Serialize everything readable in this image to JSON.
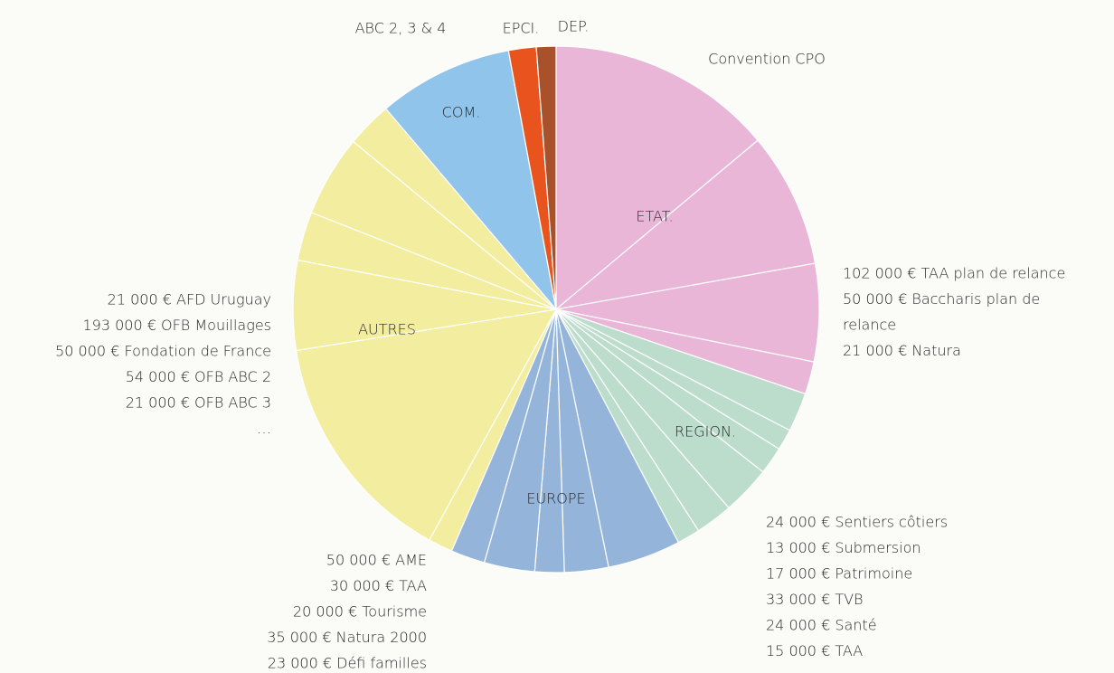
{
  "chart_data": {
    "type": "pie",
    "slices": [
      {
        "name": "ETAT.",
        "color": "#e9b6d8",
        "parts": [
          13.9,
          8.3,
          6.0,
          2.0
        ]
      },
      {
        "name": "REGION.",
        "color": "#bcdccc",
        "parts": [
          2.4,
          1.3,
          1.7,
          3.0,
          2.3,
          1.4
        ]
      },
      {
        "name": "EUROPE",
        "color": "#95b4da",
        "parts": [
          4.5,
          2.7,
          1.8,
          3.1,
          2.1
        ]
      },
      {
        "name": "AUTRES",
        "color": "#f3ed9f",
        "parts": [
          1.5,
          14.5,
          5.5,
          3.0,
          5.0,
          2.8
        ]
      },
      {
        "name": "COM.",
        "color": "#90c4ea",
        "parts": [
          8.3
        ]
      },
      {
        "name": "EPCI.",
        "color": "#e9531d",
        "parts": [
          1.7
        ]
      },
      {
        "name": "DEP.",
        "color": "#a9512b",
        "parts": [
          1.2
        ]
      }
    ],
    "annotations": [
      "ABC 2, 3 & 4",
      "Convention CPO"
    ],
    "notes": [
      [
        "102 000 € TAA plan de relance",
        "50 000 € Baccharis plan de",
        "relance",
        "21 000 € Natura"
      ],
      [
        "21 000 € AFD Uruguay",
        "193 000 € OFB Mouillages",
        "50 000 € Fondation de France",
        "54 000 € OFB ABC 2",
        "21 000 € OFB ABC 3",
        "…"
      ],
      [
        "50 000 € AME",
        "30 000 € TAA",
        "20 000 € Tourisme",
        "35 000 € Natura 2000",
        "23 000 € Défi familles"
      ],
      [
        "24 000 € Sentiers côtiers",
        "13 000 € Submersion",
        "17 000 € Patrimoine",
        "33 000 € TVB",
        "24 000 € Santé",
        "15 000 € TAA"
      ]
    ]
  }
}
